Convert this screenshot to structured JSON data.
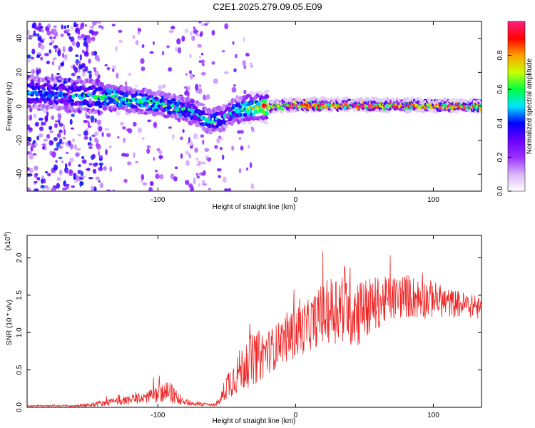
{
  "title": "C2E1.2025.279.09.05.E09",
  "chart_data": [
    {
      "type": "heatmap",
      "title": "C2E1.2025.279.09.05.E09",
      "xlabel": "Height of straight line (km)",
      "ylabel": "Frequency (Hz)",
      "xlim": [
        -195,
        135
      ],
      "ylim": [
        -50,
        50
      ],
      "x_ticks": [
        -100,
        0,
        100
      ],
      "x_tick_labels": [
        "-100",
        "0",
        "100"
      ],
      "y_ticks": [
        -40,
        -20,
        0,
        20,
        40
      ],
      "y_tick_labels": [
        "-40",
        "-20",
        "0",
        "20",
        "40"
      ],
      "colorbar": {
        "label": "Normalized spectral amplitude",
        "range": [
          0,
          1
        ],
        "ticks": [
          0.0,
          0.2,
          0.4,
          0.6,
          0.8
        ],
        "tick_labels": [
          "0.0",
          "0.2",
          "0.4",
          "0.6",
          "0.8"
        ],
        "colormap": [
          "#ffffff",
          "#d8b4f8",
          "#9b30ff",
          "#6a00ff",
          "#0000ff",
          "#00e5ff",
          "#00ff40",
          "#c8ff00",
          "#ffa000",
          "#ff0000",
          "#ff2080"
        ]
      },
      "ridge": {
        "heights_km": [
          -195,
          -170,
          -150,
          -130,
          -110,
          -90,
          -75,
          -62,
          -55,
          -45,
          -35,
          -20,
          0,
          20,
          60,
          100,
          135
        ],
        "frequency_hz": [
          8,
          7,
          6,
          5,
          3,
          0,
          -3,
          -9,
          -8,
          -3,
          -1,
          0,
          1,
          1,
          0.8,
          0.6,
          0.5
        ],
        "amplitude": [
          0.45,
          0.45,
          0.5,
          0.55,
          0.55,
          0.55,
          0.5,
          0.5,
          0.45,
          0.5,
          0.6,
          0.85,
          0.95,
          0.95,
          0.95,
          0.95,
          0.95
        ]
      }
    },
    {
      "type": "line",
      "xlabel": "Height of straight line (km)",
      "ylabel": "SNR (10 * v/v)",
      "scale_label": "(x10",
      "scale_exponent": "4",
      "scale_suffix": ")",
      "xlim": [
        -195,
        135
      ],
      "ylim": [
        0,
        2.3
      ],
      "x_ticks": [
        -100,
        0,
        100
      ],
      "x_tick_labels": [
        "-100",
        "0",
        "100"
      ],
      "y_ticks": [
        0.0,
        0.5,
        1.0,
        1.5,
        2.0
      ],
      "y_tick_labels": [
        "0.0",
        "0.5",
        "1.0",
        "1.5",
        "2.0"
      ],
      "line_color": "#ee2222",
      "series": [
        {
          "name": "SNR",
          "envelope_x": [
            -195,
            -160,
            -150,
            -140,
            -130,
            -120,
            -110,
            -100,
            -92,
            -85,
            -75,
            -60,
            -55,
            -50,
            -45,
            -40,
            -35,
            -30,
            -25,
            -20,
            -15,
            -10,
            -5,
            0,
            10,
            20,
            25,
            30,
            35,
            40,
            45,
            50,
            60,
            70,
            80,
            90,
            100,
            110,
            120,
            130,
            135
          ],
          "envelope_mean": [
            0.02,
            0.02,
            0.03,
            0.06,
            0.08,
            0.1,
            0.13,
            0.18,
            0.2,
            0.12,
            0.05,
            0.03,
            0.08,
            0.3,
            0.4,
            0.5,
            0.6,
            0.65,
            0.7,
            0.75,
            0.8,
            0.9,
            0.95,
            1.0,
            1.1,
            1.25,
            1.3,
            1.35,
            1.4,
            1.35,
            1.3,
            1.3,
            1.4,
            1.45,
            1.5,
            1.45,
            1.45,
            1.4,
            1.38,
            1.35,
            1.3
          ],
          "envelope_spread": [
            0.01,
            0.01,
            0.03,
            0.04,
            0.05,
            0.06,
            0.08,
            0.12,
            0.15,
            0.08,
            0.03,
            0.02,
            0.05,
            0.2,
            0.25,
            0.3,
            0.35,
            0.35,
            0.35,
            0.3,
            0.3,
            0.3,
            0.35,
            0.35,
            0.35,
            0.4,
            0.45,
            0.5,
            0.55,
            0.55,
            0.5,
            0.45,
            0.35,
            0.3,
            0.3,
            0.28,
            0.25,
            0.2,
            0.18,
            0.15,
            0.15
          ]
        }
      ]
    }
  ]
}
